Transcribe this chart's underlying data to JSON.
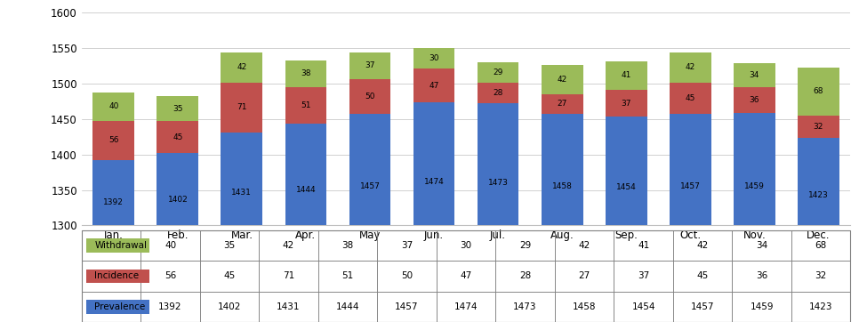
{
  "months": [
    "Jan.",
    "Feb.",
    "Mar.",
    "Apr.",
    "May",
    "Jun.",
    "Jul.",
    "Aug.",
    "Sep.",
    "Oct.",
    "Nov.",
    "Dec."
  ],
  "prevalence": [
    1392,
    1402,
    1431,
    1444,
    1457,
    1474,
    1473,
    1458,
    1454,
    1457,
    1459,
    1423
  ],
  "incidence": [
    56,
    45,
    71,
    51,
    50,
    47,
    28,
    27,
    37,
    45,
    36,
    32
  ],
  "withdrawal": [
    40,
    35,
    42,
    38,
    37,
    30,
    29,
    42,
    41,
    42,
    34,
    68
  ],
  "prevalence_color": "#4472C4",
  "incidence_color": "#C0504D",
  "withdrawal_color": "#9BBB59",
  "ylim_min": 1300,
  "ylim_max": 1600,
  "yticks": [
    1300,
    1350,
    1400,
    1450,
    1500,
    1550,
    1600
  ],
  "bar_width": 0.65,
  "figsize": [
    9.66,
    3.62
  ],
  "dpi": 100
}
